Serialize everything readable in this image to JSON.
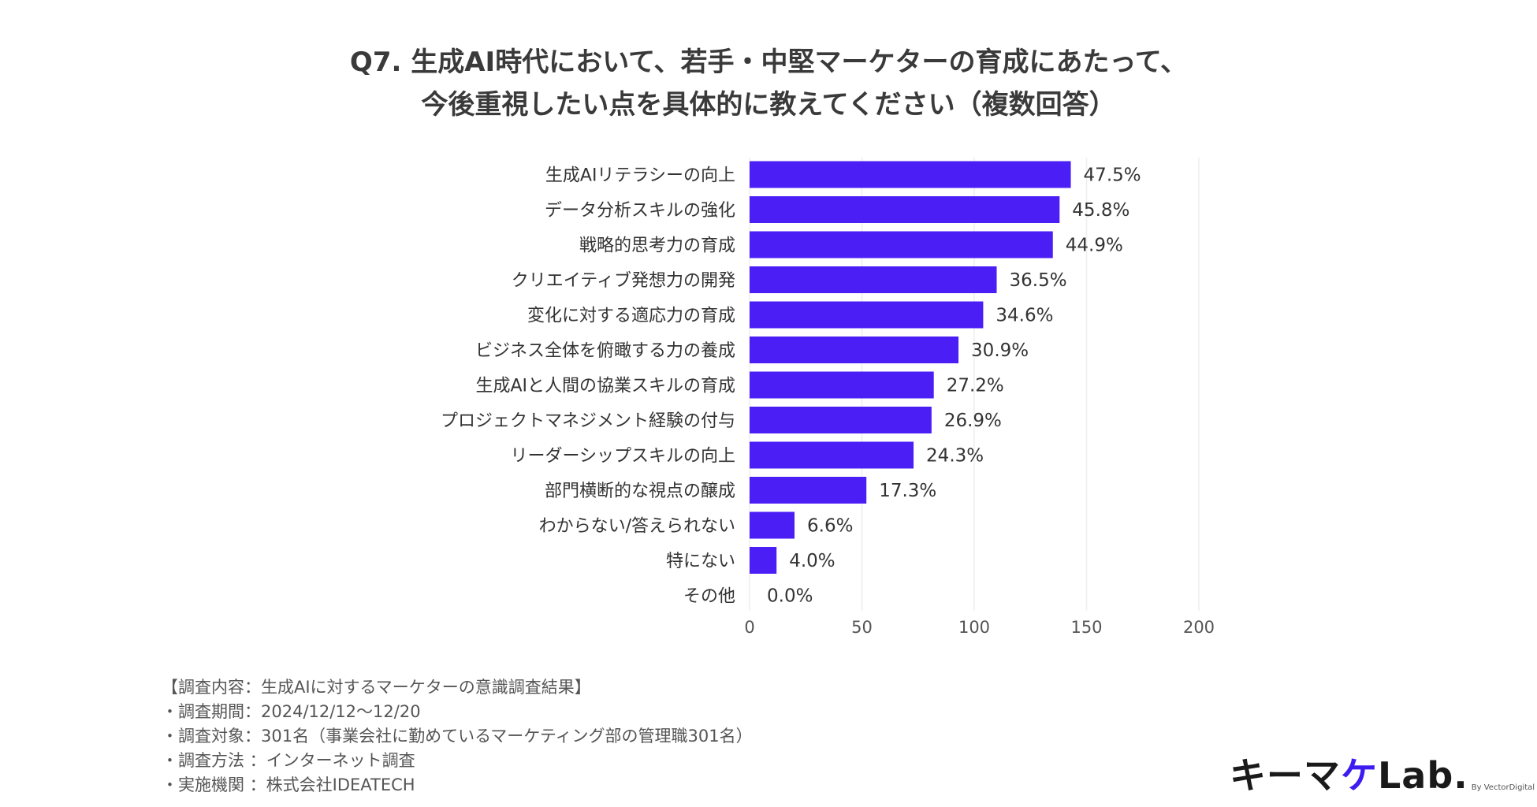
{
  "title": {
    "line1": "Q7. 生成AI時代において、若手・中堅マーケターの育成にあたって、",
    "line2": "今後重視したい点を具体的に教えてください（複数回答）"
  },
  "chart_data": {
    "type": "bar",
    "orientation": "horizontal",
    "categories": [
      "生成AIリテラシーの向上",
      "データ分析スキルの強化",
      "戦略的思考力の育成",
      "クリエイティブ発想力の開発",
      "変化に対する適応力の育成",
      "ビジネス全体を俯瞰する力の養成",
      "生成AIと人間の協業スキルの育成",
      "プロジェクトマネジメント経験の付与",
      "リーダーシップスキルの向上",
      "部門横断的な視点の醸成",
      "わからない/答えられない",
      "特にない",
      "その他"
    ],
    "values": [
      143,
      138,
      135,
      110,
      104,
      93,
      82,
      81,
      73,
      52,
      20,
      12,
      0
    ],
    "labels": [
      "47.5%",
      "45.8%",
      "44.9%",
      "36.5%",
      "34.6%",
      "30.9%",
      "27.2%",
      "26.9%",
      "24.3%",
      "17.3%",
      "6.6%",
      "4.0%",
      "0.0%"
    ],
    "xlim": [
      0,
      200
    ],
    "xticks": [
      0,
      50,
      100,
      150,
      200
    ],
    "grid": true,
    "legend": "none",
    "bar_color": "#4a1ef5",
    "grid_color": "#eeeeee"
  },
  "notes": [
    "【調査内容：生成AIに対するマーケターの意識調査結果】",
    "・調査期間：2024/12/12〜12/20",
    "・調査対象：301名（事業会社に勤めているマーケティング部の管理職301名）",
    "・調査方法 ：インターネット調査",
    "・実施機関 ：株式会社IDEATECH"
  ],
  "logo": {
    "main": "キーマ",
    "accent": "ケ",
    "suffix": "Lab.",
    "by": "By VectorDigital"
  }
}
